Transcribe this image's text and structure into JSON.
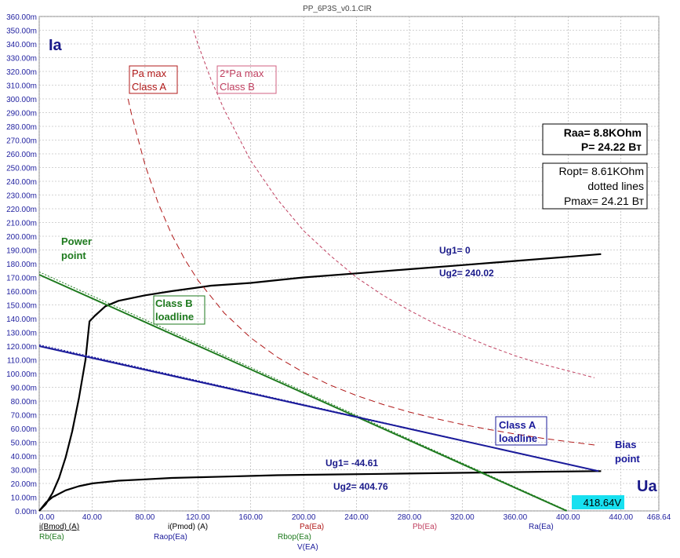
{
  "window": {
    "title": "PP_6P3S_v0.1.CIR"
  },
  "chart_data": {
    "type": "line",
    "y_axis_title": "Ia",
    "x_axis_title": "Ua",
    "xlim": [
      0,
      468.64
    ],
    "ylim": [
      0,
      0.36
    ],
    "grid": true,
    "x_ticks": [
      0,
      40,
      80,
      120,
      160,
      200,
      240,
      280,
      320,
      360,
      400,
      440,
      468.64
    ],
    "x_tick_labels": [
      "0.00",
      "40.00",
      "80.00",
      "120.00",
      "160.00",
      "200.00",
      "240.00",
      "280.00",
      "320.00",
      "360.00",
      "400.00",
      "440.00",
      "468.64"
    ],
    "y_ticks": [
      0,
      0.01,
      0.02,
      0.03,
      0.04,
      0.05,
      0.06,
      0.07,
      0.08,
      0.09,
      0.1,
      0.11,
      0.12,
      0.13,
      0.14,
      0.15,
      0.16,
      0.17,
      0.18,
      0.19,
      0.2,
      0.21,
      0.22,
      0.23,
      0.24,
      0.25,
      0.26,
      0.27,
      0.28,
      0.29,
      0.3,
      0.31,
      0.32,
      0.33,
      0.34,
      0.35,
      0.36
    ],
    "y_tick_labels": [
      "0.00m",
      "10.00m",
      "20.00m",
      "30.00m",
      "40.00m",
      "50.00m",
      "60.00m",
      "70.00m",
      "80.00m",
      "90.00m",
      "100.00m",
      "110.00m",
      "120.00m",
      "130.00m",
      "140.00m",
      "150.00m",
      "160.00m",
      "170.00m",
      "180.00m",
      "190.00m",
      "200.00m",
      "210.00m",
      "220.00m",
      "230.00m",
      "240.00m",
      "250.00m",
      "260.00m",
      "270.00m",
      "280.00m",
      "290.00m",
      "300.00m",
      "310.00m",
      "320.00m",
      "330.00m",
      "340.00m",
      "350.00m",
      "360.00m"
    ],
    "series": [
      {
        "name": "i(Bmod) (A)",
        "color": "#000000",
        "dash": "",
        "width": 2.2,
        "x": [
          0,
          5,
          10,
          15,
          20,
          25,
          30,
          35,
          38,
          42,
          50,
          60,
          80,
          100,
          130,
          160,
          200,
          240,
          280,
          320,
          360,
          400,
          425
        ],
        "y": [
          0,
          0.005,
          0.013,
          0.024,
          0.039,
          0.058,
          0.082,
          0.11,
          0.138,
          0.142,
          0.149,
          0.153,
          0.157,
          0.16,
          0.164,
          0.166,
          0.17,
          0.173,
          0.176,
          0.179,
          0.182,
          0.185,
          0.187
        ]
      },
      {
        "name": "i(Pmod) (A)",
        "color": "#000000",
        "dash": "",
        "width": 2.2,
        "x": [
          0,
          5,
          10,
          20,
          30,
          40,
          60,
          80,
          100,
          140,
          180,
          220,
          260,
          300,
          340,
          380,
          425
        ],
        "y": [
          0,
          0.006,
          0.01,
          0.015,
          0.018,
          0.02,
          0.022,
          0.023,
          0.024,
          0.025,
          0.026,
          0.0265,
          0.027,
          0.0275,
          0.028,
          0.0285,
          0.029
        ]
      },
      {
        "name": "Rb(Ea)",
        "color": "#1e7a1e",
        "dash": "",
        "width": 2,
        "x": [
          0,
          399
        ],
        "y": [
          0.172,
          0
        ]
      },
      {
        "name": "Rbop(Ea)",
        "color": "#1e7a1e",
        "dash": "2,2",
        "width": 1,
        "x": [
          0,
          400
        ],
        "y": [
          0.174,
          0
        ]
      },
      {
        "name": "Ra(Ea)",
        "color": "#1a1a9a",
        "dash": "",
        "width": 2,
        "x": [
          0,
          423
        ],
        "y": [
          0.12,
          0.029
        ]
      },
      {
        "name": "Raop(Ea)",
        "color": "#1a1a9a",
        "dash": "2,2",
        "width": 1,
        "x": [
          0,
          423
        ],
        "y": [
          0.121,
          0.029
        ]
      },
      {
        "name": "Pa(Ea)",
        "color": "#b01818",
        "dash": "8,5",
        "width": 1,
        "x": [
          67.2,
          70,
          80,
          90,
          100,
          110,
          120,
          140,
          160,
          180,
          200,
          220,
          240,
          260,
          280,
          300,
          320,
          340,
          360,
          380,
          400,
          420
        ],
        "y": [
          0.3,
          0.288,
          0.252,
          0.224,
          0.2016,
          0.1833,
          0.168,
          0.144,
          0.126,
          0.112,
          0.1008,
          0.0916,
          0.084,
          0.0775,
          0.072,
          0.0672,
          0.063,
          0.0593,
          0.056,
          0.053,
          0.0504,
          0.048
        ]
      },
      {
        "name": "Pb(Ea)",
        "color": "#c04060",
        "dash": "4,3",
        "width": 1,
        "x": [
          116.7,
          120,
          130,
          140,
          160,
          180,
          200,
          220,
          240,
          260,
          280,
          300,
          320,
          340,
          360,
          380,
          400,
          420
        ],
        "y": [
          0.35,
          0.34,
          0.314,
          0.292,
          0.255,
          0.227,
          0.204,
          0.186,
          0.17,
          0.157,
          0.146,
          0.136,
          0.128,
          0.12,
          0.113,
          0.107,
          0.102,
          0.097
        ]
      }
    ],
    "legend_labels": [
      "i(Bmod) (A)",
      "i(Pmod) (A)",
      "Rb(Ea)",
      "Raop(Ea)",
      "Rbop(Ea)",
      "Pa(Ea)",
      "V(EA)",
      "Pb(Ea)",
      "Ra(Ea)"
    ],
    "annotations": {
      "power_point": [
        "Power",
        "point"
      ],
      "class_b": [
        "Class B",
        "loadline"
      ],
      "class_a": [
        "Class A",
        "loadline"
      ],
      "bias_point": [
        "Bias",
        "point"
      ],
      "ug1_top": "Ug1= 0",
      "ug2_top": "Ug2= 240.02",
      "ug1_bottom": "Ug1= -44.61",
      "ug2_bottom": "Ug2= 404.76",
      "pa_max": [
        "Pa max",
        "Class A"
      ],
      "pa2_max": [
        "2*Pa max",
        "Class B"
      ],
      "raa_box": [
        "Raa= 8.8KOhm",
        "P= 24.22 Вт"
      ],
      "ropt_box": [
        "Ropt= 8.61KOhm",
        "dotted lines",
        "Pmax= 24.21 Вт"
      ],
      "cursor_value": "418.64V"
    }
  }
}
